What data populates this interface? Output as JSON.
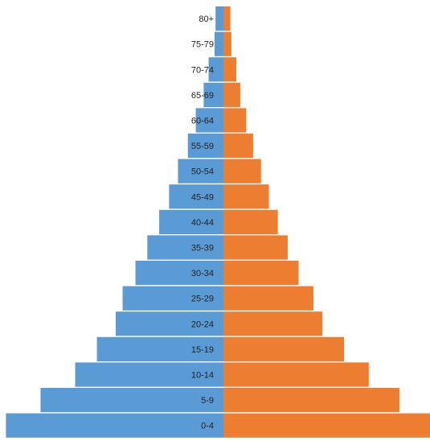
{
  "chart_data": {
    "type": "bar",
    "orientation": "horizontal-diverging",
    "categories": [
      "80+",
      "75-79",
      "70-74",
      "65-69",
      "60-64",
      "55-59",
      "50-54",
      "45-49",
      "40-44",
      "35-39",
      "30-34",
      "25-29",
      "20-24",
      "15-19",
      "10-14",
      "5-9",
      "0-4"
    ],
    "series": [
      {
        "color": "#5b9bd5",
        "side": "left",
        "values": [
          0.8,
          0.9,
          1.5,
          2.0,
          2.8,
          3.6,
          4.6,
          5.5,
          6.5,
          7.7,
          8.9,
          10.2,
          10.9,
          12.8,
          15.0,
          18.5,
          22.0
        ]
      },
      {
        "color": "#ed7d31",
        "side": "right",
        "values": [
          0.7,
          0.8,
          1.3,
          1.7,
          2.3,
          3.0,
          3.8,
          4.6,
          5.5,
          6.5,
          7.6,
          9.1,
          10.0,
          12.2,
          14.7,
          17.8,
          21.5
        ]
      }
    ],
    "xlim": [
      -22,
      21.5
    ],
    "title": "",
    "xlabel": "",
    "ylabel": "",
    "grid": false,
    "legend": "none"
  }
}
